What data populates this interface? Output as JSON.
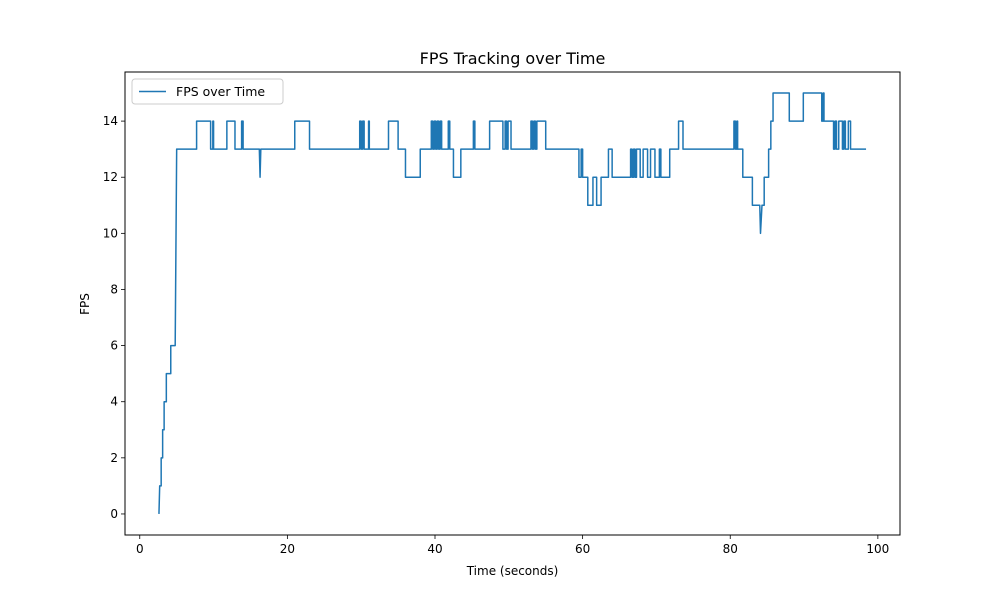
{
  "chart_data": {
    "type": "line",
    "title": "FPS Tracking over Time",
    "xlabel": "Time (seconds)",
    "ylabel": "FPS",
    "xlim": [
      -2.0,
      103.0
    ],
    "ylim": [
      -0.75,
      15.75
    ],
    "xticks": [
      0,
      20,
      40,
      60,
      80,
      100
    ],
    "yticks": [
      0,
      2,
      4,
      6,
      8,
      10,
      12,
      14
    ],
    "grid": false,
    "legend": {
      "position": "upper-left",
      "entries": [
        "FPS over Time"
      ]
    },
    "series": [
      {
        "name": "FPS over Time",
        "color": "#1f77b4",
        "points": [
          [
            2.6,
            0
          ],
          [
            2.7,
            1
          ],
          [
            2.9,
            1
          ],
          [
            2.9,
            2
          ],
          [
            3.1,
            2
          ],
          [
            3.1,
            3
          ],
          [
            3.3,
            3
          ],
          [
            3.3,
            4
          ],
          [
            3.6,
            4
          ],
          [
            3.6,
            5
          ],
          [
            4.2,
            5
          ],
          [
            4.2,
            6
          ],
          [
            4.8,
            6
          ],
          [
            5.0,
            13
          ],
          [
            7.7,
            13
          ],
          [
            7.7,
            14
          ],
          [
            9.6,
            14
          ],
          [
            9.6,
            13
          ],
          [
            9.9,
            13
          ],
          [
            9.9,
            14
          ],
          [
            10.0,
            14
          ],
          [
            10.0,
            13
          ],
          [
            11.8,
            13
          ],
          [
            11.8,
            14
          ],
          [
            12.9,
            14
          ],
          [
            12.9,
            13
          ],
          [
            13.8,
            13
          ],
          [
            13.8,
            14
          ],
          [
            14.0,
            14
          ],
          [
            14.0,
            13
          ],
          [
            16.2,
            13
          ],
          [
            16.3,
            12
          ],
          [
            16.4,
            13
          ],
          [
            21.0,
            13
          ],
          [
            21.0,
            14
          ],
          [
            23.0,
            14
          ],
          [
            23.0,
            13
          ],
          [
            29.8,
            13
          ],
          [
            29.8,
            14
          ],
          [
            30.0,
            14
          ],
          [
            30.0,
            13
          ],
          [
            30.2,
            13
          ],
          [
            30.2,
            14
          ],
          [
            30.4,
            14
          ],
          [
            30.4,
            13
          ],
          [
            31.0,
            13
          ],
          [
            31.0,
            14
          ],
          [
            31.1,
            14
          ],
          [
            31.1,
            13
          ],
          [
            33.7,
            13
          ],
          [
            33.7,
            14
          ],
          [
            35.0,
            14
          ],
          [
            35.0,
            13
          ],
          [
            36.0,
            13
          ],
          [
            36.0,
            12
          ],
          [
            38.0,
            12
          ],
          [
            38.0,
            13
          ],
          [
            39.5,
            13
          ],
          [
            39.5,
            14
          ],
          [
            39.7,
            14
          ],
          [
            39.7,
            13
          ],
          [
            39.9,
            13
          ],
          [
            39.9,
            14
          ],
          [
            40.1,
            14
          ],
          [
            40.1,
            13
          ],
          [
            40.3,
            13
          ],
          [
            40.3,
            14
          ],
          [
            40.5,
            14
          ],
          [
            40.5,
            13
          ],
          [
            40.7,
            13
          ],
          [
            40.7,
            14
          ],
          [
            40.9,
            14
          ],
          [
            40.9,
            13
          ],
          [
            41.8,
            13
          ],
          [
            41.8,
            14
          ],
          [
            42.0,
            14
          ],
          [
            42.0,
            13
          ],
          [
            42.5,
            13
          ],
          [
            42.5,
            12
          ],
          [
            43.5,
            12
          ],
          [
            43.5,
            13
          ],
          [
            45.2,
            13
          ],
          [
            45.2,
            14
          ],
          [
            45.4,
            14
          ],
          [
            45.4,
            13
          ],
          [
            47.4,
            13
          ],
          [
            47.4,
            14
          ],
          [
            49.2,
            14
          ],
          [
            49.2,
            13
          ],
          [
            49.5,
            13
          ],
          [
            49.5,
            14
          ],
          [
            49.7,
            14
          ],
          [
            49.7,
            13
          ],
          [
            49.9,
            13
          ],
          [
            49.9,
            14
          ],
          [
            50.3,
            14
          ],
          [
            50.3,
            13
          ],
          [
            53.0,
            13
          ],
          [
            53.0,
            14
          ],
          [
            53.2,
            14
          ],
          [
            53.2,
            13
          ],
          [
            53.4,
            13
          ],
          [
            53.4,
            14
          ],
          [
            53.6,
            14
          ],
          [
            53.6,
            13
          ],
          [
            53.8,
            13
          ],
          [
            53.8,
            14
          ],
          [
            55.0,
            14
          ],
          [
            55.0,
            13
          ],
          [
            59.5,
            13
          ],
          [
            59.5,
            12
          ],
          [
            59.8,
            12
          ],
          [
            59.8,
            13
          ],
          [
            60.0,
            13
          ],
          [
            60.0,
            12
          ],
          [
            60.7,
            12
          ],
          [
            60.7,
            11
          ],
          [
            61.4,
            11
          ],
          [
            61.4,
            12
          ],
          [
            61.9,
            12
          ],
          [
            61.9,
            11
          ],
          [
            62.5,
            11
          ],
          [
            62.5,
            12
          ],
          [
            63.5,
            12
          ],
          [
            63.5,
            13
          ],
          [
            64.0,
            13
          ],
          [
            64.0,
            12
          ],
          [
            66.5,
            12
          ],
          [
            66.5,
            13
          ],
          [
            66.7,
            13
          ],
          [
            66.7,
            12
          ],
          [
            66.9,
            12
          ],
          [
            66.9,
            13
          ],
          [
            67.1,
            13
          ],
          [
            67.1,
            12
          ],
          [
            67.3,
            12
          ],
          [
            67.3,
            13
          ],
          [
            67.8,
            13
          ],
          [
            67.8,
            12
          ],
          [
            68.2,
            12
          ],
          [
            68.2,
            13
          ],
          [
            68.8,
            13
          ],
          [
            68.8,
            12
          ],
          [
            69.2,
            12
          ],
          [
            69.2,
            13
          ],
          [
            69.8,
            13
          ],
          [
            69.8,
            12
          ],
          [
            70.4,
            12
          ],
          [
            70.4,
            13
          ],
          [
            70.6,
            13
          ],
          [
            70.6,
            12
          ],
          [
            71.8,
            12
          ],
          [
            71.8,
            13
          ],
          [
            73.0,
            13
          ],
          [
            73.0,
            14
          ],
          [
            73.6,
            14
          ],
          [
            73.6,
            13
          ],
          [
            80.5,
            13
          ],
          [
            80.5,
            14
          ],
          [
            80.7,
            14
          ],
          [
            80.7,
            13
          ],
          [
            80.9,
            13
          ],
          [
            80.9,
            14
          ],
          [
            81.0,
            14
          ],
          [
            81.0,
            13
          ],
          [
            81.7,
            13
          ],
          [
            81.7,
            12
          ],
          [
            83.0,
            12
          ],
          [
            83.0,
            11
          ],
          [
            84.0,
            11
          ],
          [
            84.1,
            10
          ],
          [
            84.3,
            11
          ],
          [
            84.6,
            11
          ],
          [
            84.6,
            12
          ],
          [
            85.2,
            12
          ],
          [
            85.2,
            13
          ],
          [
            85.5,
            13
          ],
          [
            85.5,
            14
          ],
          [
            85.8,
            14
          ],
          [
            85.8,
            15
          ],
          [
            88.0,
            15
          ],
          [
            88.0,
            14
          ],
          [
            89.9,
            14
          ],
          [
            89.9,
            15
          ],
          [
            92.4,
            15
          ],
          [
            92.4,
            14
          ],
          [
            92.6,
            14
          ],
          [
            92.6,
            15
          ],
          [
            92.7,
            15
          ],
          [
            92.7,
            14
          ],
          [
            94.0,
            14
          ],
          [
            94.0,
            13
          ],
          [
            94.2,
            13
          ],
          [
            94.2,
            14
          ],
          [
            94.4,
            14
          ],
          [
            94.4,
            13
          ],
          [
            94.7,
            13
          ],
          [
            94.7,
            14
          ],
          [
            95.2,
            14
          ],
          [
            95.2,
            13
          ],
          [
            95.4,
            13
          ],
          [
            95.4,
            14
          ],
          [
            95.6,
            14
          ],
          [
            95.6,
            13
          ],
          [
            96.0,
            13
          ],
          [
            96.0,
            14
          ],
          [
            96.3,
            14
          ],
          [
            96.3,
            13
          ],
          [
            98.4,
            13
          ]
        ]
      }
    ]
  }
}
